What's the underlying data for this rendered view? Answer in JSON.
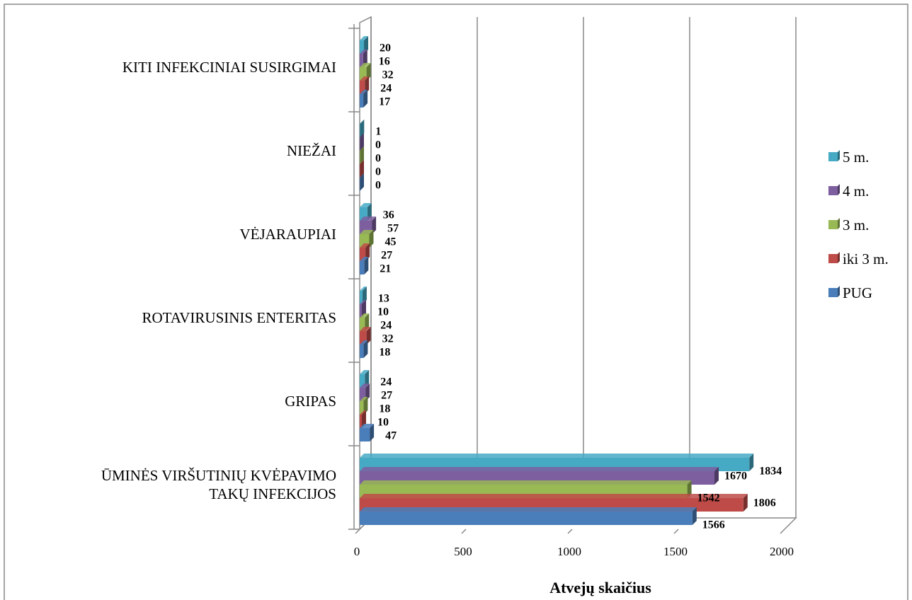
{
  "chart_data": {
    "type": "bar",
    "orientation": "horizontal",
    "three_d": true,
    "categories": [
      "ŪMINĖS VIRŠUTINIŲ KVĖPAVIMO TAKŲ INFEKCIJOS",
      "GRIPAS",
      "ROTAVIRUSINIS ENTERITAS",
      "VĖJARAUPIAI",
      "NIEŽAI",
      "KITI INFEKCINIAI SUSIRGIMAI"
    ],
    "category_lines": [
      [
        "ŪMINĖS VIRŠUTINIŲ KVĖPAVIMO",
        "TAKŲ INFEKCIJOS"
      ],
      [
        "GRIPAS"
      ],
      [
        "ROTAVIRUSINIS ENTERITAS"
      ],
      [
        "VĖJARAUPIAI"
      ],
      [
        "NIEŽAI"
      ],
      [
        "KITI INFEKCINIAI SUSIRGIMAI"
      ]
    ],
    "series": [
      {
        "name": "PUG",
        "color": "#4a7ebb",
        "values": [
          1566,
          47,
          18,
          21,
          0,
          17
        ]
      },
      {
        "name": "iki 3 m.",
        "color": "#be4b48",
        "values": [
          1806,
          10,
          32,
          27,
          0,
          24
        ]
      },
      {
        "name": "3 m.",
        "color": "#98b954",
        "values": [
          1542,
          18,
          24,
          45,
          0,
          32
        ]
      },
      {
        "name": "4 m.",
        "color": "#7d5fa0",
        "values": [
          1670,
          27,
          10,
          57,
          0,
          16
        ]
      },
      {
        "name": "5 m.",
        "color": "#46aac5",
        "values": [
          1834,
          24,
          13,
          36,
          1,
          20
        ]
      }
    ],
    "xlabel": "Atvejų skaičius",
    "ylabel": "",
    "xlim": [
      0,
      2000
    ],
    "xticks": [
      "0",
      "500",
      "1000",
      "1500",
      "2000"
    ],
    "grid": "vertical",
    "legend_position": "right",
    "legend_order": [
      "5 m.",
      "4 m.",
      "3 m.",
      "iki 3 m.",
      "PUG"
    ]
  }
}
